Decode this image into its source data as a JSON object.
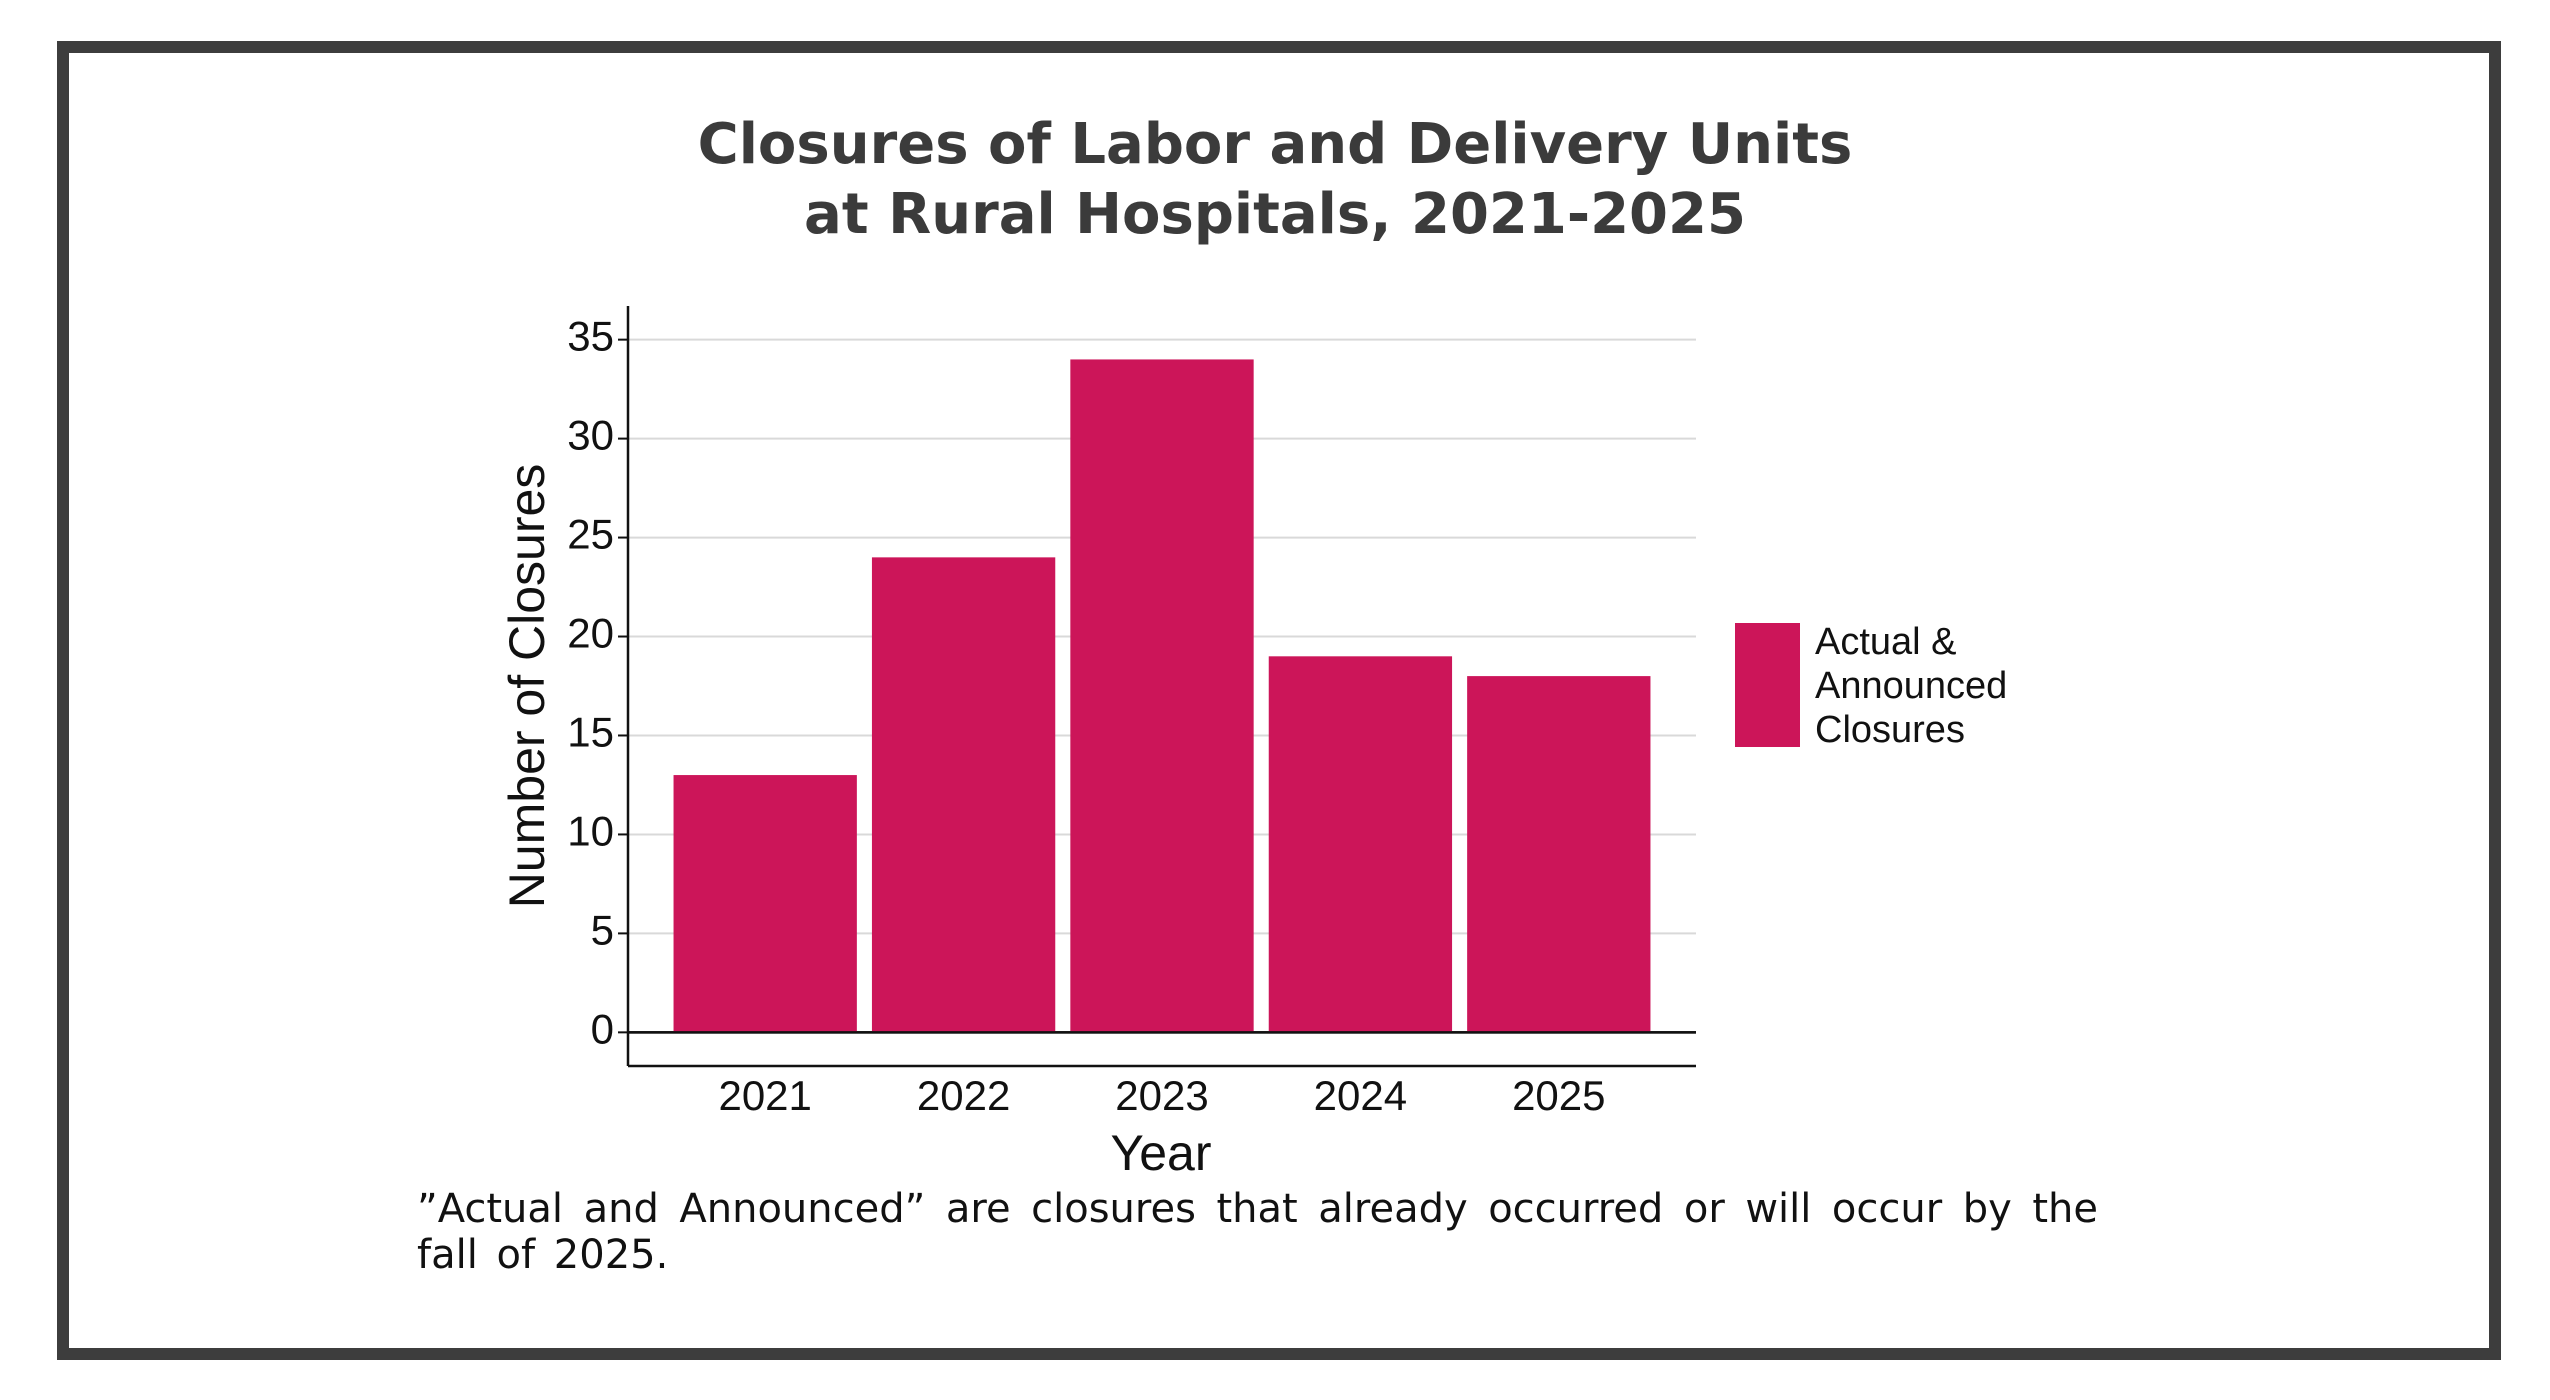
{
  "chart_data": {
    "type": "bar",
    "title": "Closures of Labor and Delivery Units\nat Rural Hospitals, 2021-2025",
    "x_label": "Year",
    "y_label": "Number of Closures",
    "categories": [
      "2021",
      "2022",
      "2023",
      "2024",
      "2025"
    ],
    "series": [
      {
        "name": "Actual & Announced Closures",
        "color": "#cc1559",
        "values": [
          13,
          24,
          34,
          19,
          18
        ]
      }
    ],
    "ylim": [
      -1.7,
      36.7
    ],
    "yticks": [
      0,
      5,
      10,
      15,
      20,
      25,
      30,
      35
    ],
    "grid": true,
    "legend": "right",
    "note": "”Actual and Announced” are closures that already occurred or will occur by the fall of 2025."
  }
}
